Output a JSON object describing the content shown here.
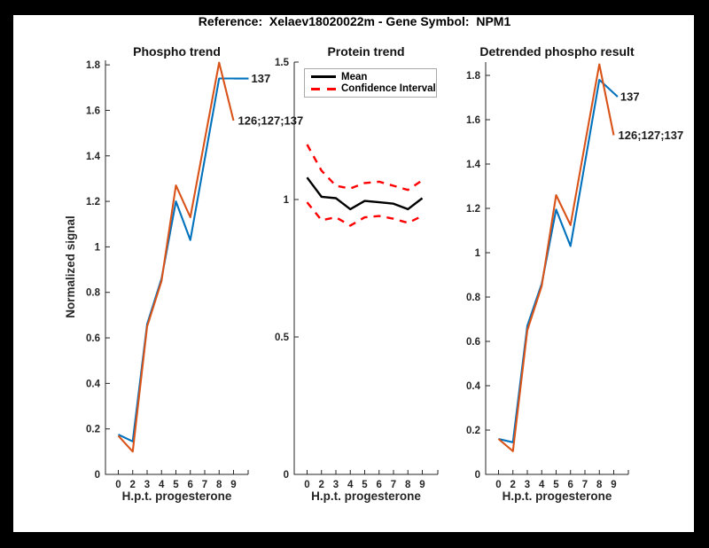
{
  "figure_title": "Reference:  Xelaev18020022m - Gene Symbol:  NPM1",
  "palette": {
    "blue": "#0072BD",
    "orange": "#D95319",
    "red": "#FF0000",
    "black": "#000000",
    "axis": "#262626"
  },
  "chart_data": [
    {
      "type": "line",
      "title": "Phospho trend",
      "xlabel": "H.p.t. progesterone",
      "ylabel": "Normalized signal",
      "x_ticklabels": [
        "0",
        "2",
        "3",
        "4",
        "5",
        "6",
        "7",
        "8",
        "9"
      ],
      "ylim": [
        0,
        1.82
      ],
      "yticks": [
        0,
        0.2,
        0.4,
        0.6,
        0.8,
        1,
        1.2,
        1.4,
        1.6,
        1.8
      ],
      "ytick_labels": [
        "0",
        "0.2",
        "0.4",
        "0.6",
        "0.8",
        "1",
        "1.2",
        "1.4",
        "1.6",
        "1.8"
      ],
      "grid": false,
      "legend": null,
      "series": [
        {
          "name": "137",
          "color": "blue",
          "dash": false,
          "leader": true,
          "end_label": "137",
          "values": [
            0.175,
            0.145,
            0.66,
            0.86,
            1.2,
            1.03,
            1.385,
            1.74,
            1.74
          ]
        },
        {
          "name": "126;127;137",
          "color": "orange",
          "dash": false,
          "leader": false,
          "end_label": "126;127;137",
          "values": [
            0.17,
            0.1,
            0.65,
            0.85,
            1.27,
            1.13,
            1.47,
            1.81,
            1.555
          ]
        }
      ]
    },
    {
      "type": "line",
      "title": "Protein trend",
      "xlabel": "H.p.t. progesterone",
      "ylabel": "",
      "x_ticklabels": [
        "0",
        "2",
        "3",
        "4",
        "5",
        "6",
        "7",
        "8",
        "9"
      ],
      "ylim": [
        0,
        1.5
      ],
      "yticks": [
        0,
        0.5,
        1,
        1.5
      ],
      "ytick_labels": [
        "0",
        "0.5",
        "1",
        "1.5"
      ],
      "grid": false,
      "legend": {
        "position": "top-left",
        "entries": [
          {
            "label": "Mean",
            "color": "black",
            "dash": false
          },
          {
            "label": "Confidence Interval",
            "color": "red",
            "dash": true
          }
        ]
      },
      "series": [
        {
          "name": "Mean",
          "color": "black",
          "dash": false,
          "width": 2.4,
          "values": [
            1.08,
            1.01,
            1.005,
            0.965,
            0.995,
            0.99,
            0.985,
            0.965,
            1.005
          ]
        },
        {
          "name": "Confidence Interval upper",
          "color": "red",
          "dash": true,
          "width": 2.4,
          "values": [
            1.2,
            1.105,
            1.05,
            1.04,
            1.06,
            1.065,
            1.05,
            1.035,
            1.07
          ]
        },
        {
          "name": "Confidence Interval lower",
          "color": "red",
          "dash": true,
          "width": 2.4,
          "values": [
            0.99,
            0.925,
            0.935,
            0.905,
            0.935,
            0.94,
            0.93,
            0.915,
            0.94
          ]
        }
      ]
    },
    {
      "type": "line",
      "title": "Detrended phospho result",
      "xlabel": "H.p.t. progesterone",
      "ylabel": "",
      "x_ticklabels": [
        "0",
        "2",
        "3",
        "4",
        "5",
        "6",
        "7",
        "8",
        "9"
      ],
      "ylim": [
        0,
        1.86
      ],
      "yticks": [
        0,
        0.2,
        0.4,
        0.6,
        0.8,
        1,
        1.2,
        1.4,
        1.6,
        1.8
      ],
      "ytick_labels": [
        "0",
        "0.2",
        "0.4",
        "0.6",
        "0.8",
        "1",
        "1.2",
        "1.4",
        "1.6",
        "1.8"
      ],
      "grid": false,
      "legend": null,
      "series": [
        {
          "name": "137",
          "color": "blue",
          "dash": false,
          "leader": true,
          "end_label": "137",
          "values": [
            0.16,
            0.145,
            0.67,
            0.86,
            1.195,
            1.03,
            1.405,
            1.78,
            1.72
          ]
        },
        {
          "name": "126;127;137",
          "color": "orange",
          "dash": false,
          "leader": false,
          "end_label": "126;127;137",
          "values": [
            0.16,
            0.105,
            0.65,
            0.85,
            1.26,
            1.125,
            1.49,
            1.85,
            1.53
          ]
        }
      ]
    }
  ]
}
